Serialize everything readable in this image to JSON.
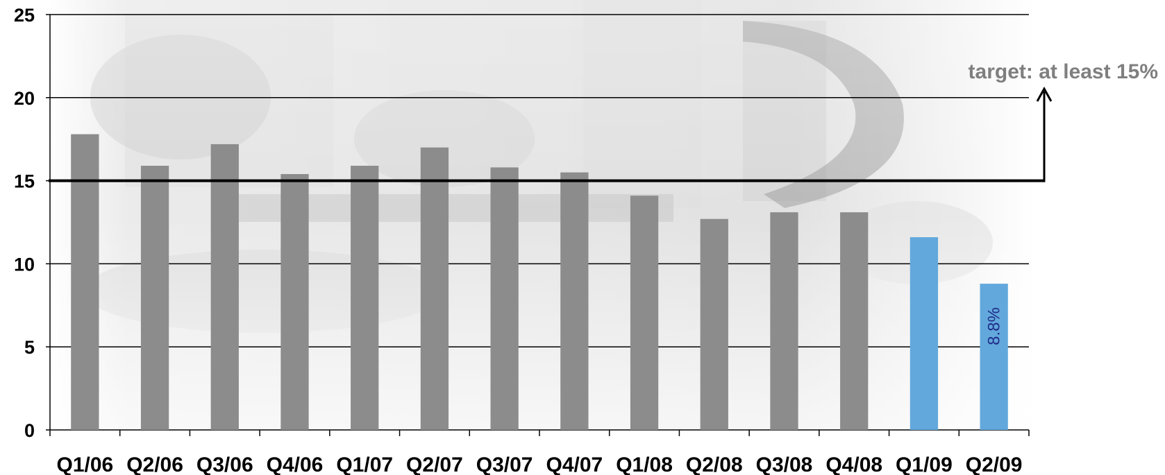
{
  "chart_data": {
    "type": "bar",
    "categories": [
      "Q1/06",
      "Q2/06",
      "Q3/06",
      "Q4/06",
      "Q1/07",
      "Q2/07",
      "Q3/07",
      "Q4/07",
      "Q1/08",
      "Q2/08",
      "Q3/08",
      "Q4/08",
      "Q1/09",
      "Q2/09"
    ],
    "values": [
      17.8,
      15.9,
      17.2,
      15.4,
      15.9,
      17.0,
      15.8,
      15.5,
      14.1,
      12.7,
      13.1,
      13.1,
      11.6,
      8.8
    ],
    "highlight_from_index": 12,
    "ylim": [
      0,
      25
    ],
    "yticks": [
      "0",
      "5",
      "10",
      "15",
      "20",
      "25"
    ],
    "grid": true,
    "target_value": 15,
    "target_label": "target: at least 15%",
    "data_labels": [
      {
        "index": 13,
        "text": "8.8%"
      }
    ],
    "colors": {
      "bar": "#8c8c8c",
      "highlight_bar": "#62a8dc",
      "target_line": "#000000",
      "annotation_text": "#7f7f7f",
      "data_label_text": "#1f2d8a",
      "grid": "#000000"
    }
  }
}
